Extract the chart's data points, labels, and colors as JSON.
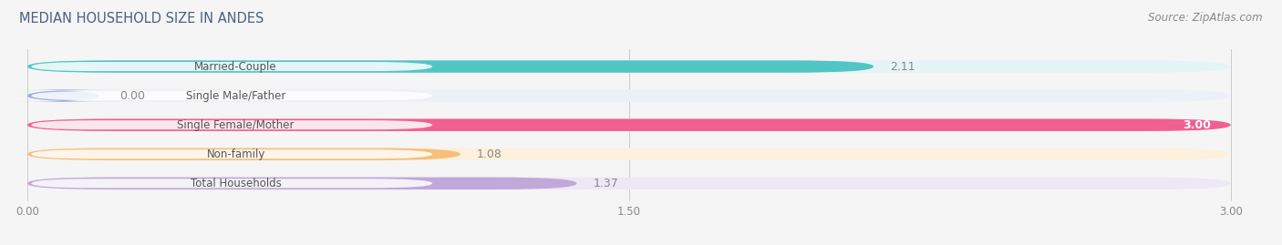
{
  "title": "MEDIAN HOUSEHOLD SIZE IN ANDES",
  "source": "Source: ZipAtlas.com",
  "categories": [
    "Married-Couple",
    "Single Male/Father",
    "Single Female/Mother",
    "Non-family",
    "Total Households"
  ],
  "values": [
    2.11,
    0.0,
    3.0,
    1.08,
    1.37
  ],
  "bar_colors": [
    "#52c5c5",
    "#9daee0",
    "#f06090",
    "#f5c07a",
    "#c0a8d8"
  ],
  "bar_bg_colors": [
    "#e5f5f5",
    "#eef0f8",
    "#fde8f0",
    "#fdf0dc",
    "#ede8f5"
  ],
  "xlim": [
    0.0,
    3.0
  ],
  "xticks": [
    0.0,
    1.5,
    3.0
  ],
  "xtick_labels": [
    "0.00",
    "1.50",
    "3.00"
  ],
  "title_fontsize": 10.5,
  "source_fontsize": 8.5,
  "bar_label_fontsize": 9,
  "cat_label_fontsize": 8.5,
  "bar_height": 0.42,
  "bar_gap": 0.58,
  "background_color": "#f5f5f5"
}
